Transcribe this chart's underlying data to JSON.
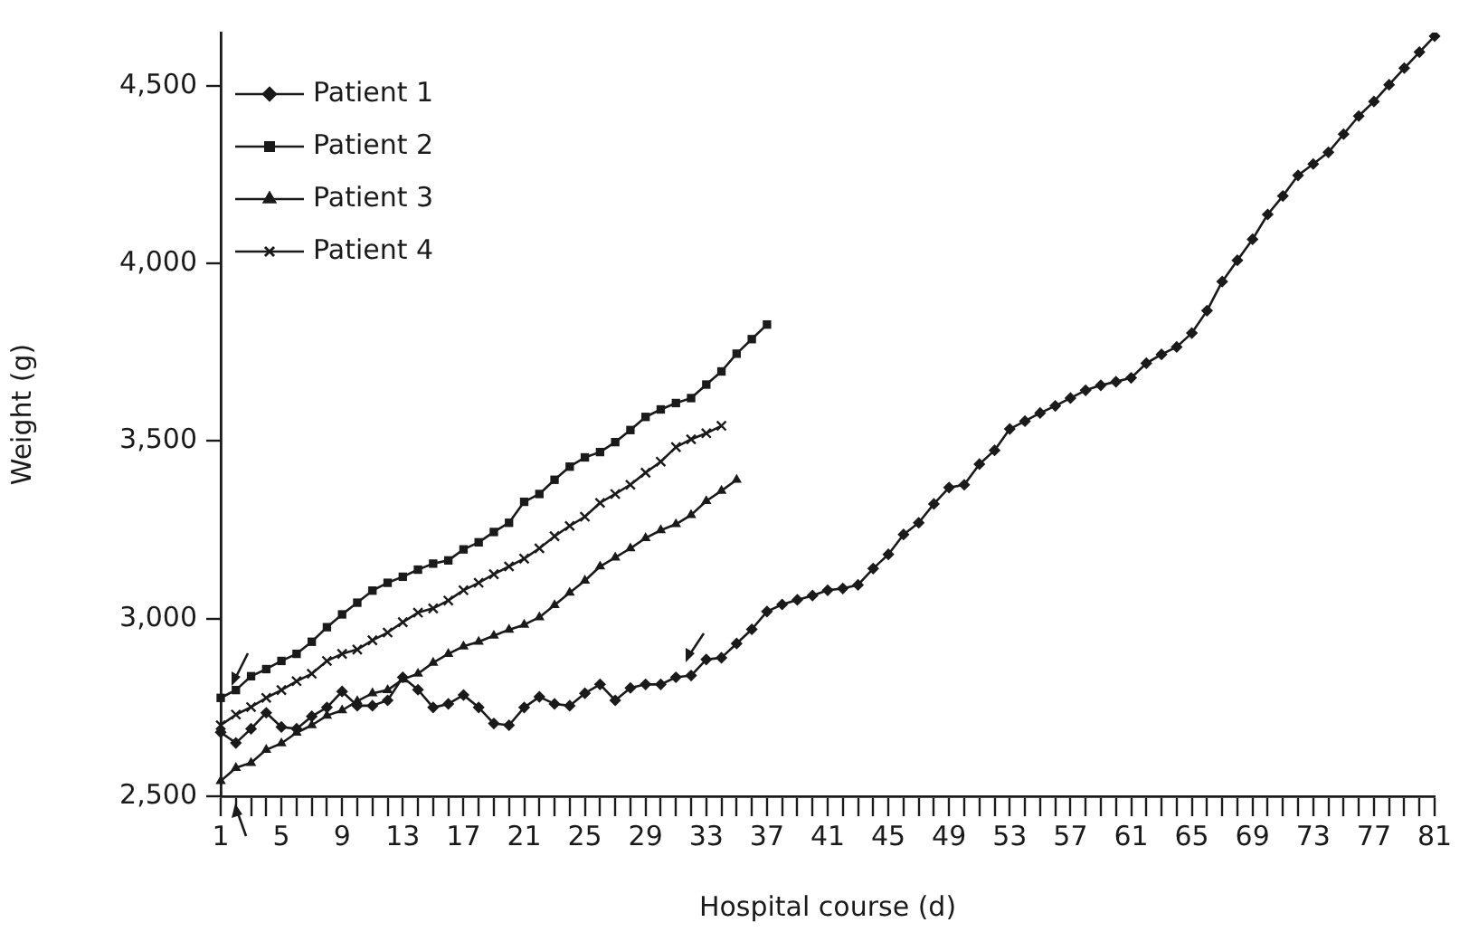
{
  "chart_data": {
    "type": "line",
    "xlabel": "Hospital course (d)",
    "ylabel": "Weight (g)",
    "categories": [
      "1",
      null,
      null,
      null,
      "5",
      null,
      null,
      null,
      "9",
      null,
      null,
      null,
      "13",
      null,
      null,
      null,
      "17",
      null,
      null,
      null,
      "21",
      null,
      null,
      null,
      "25",
      null,
      null,
      null,
      "29",
      null,
      null,
      null,
      "33",
      null,
      null,
      null,
      "37",
      null,
      null,
      null,
      "41",
      null,
      null,
      null,
      "45",
      null,
      null,
      null,
      "49",
      null,
      null,
      null,
      "53",
      null,
      null,
      null,
      "57",
      null,
      null,
      null,
      "61",
      null,
      null,
      null,
      "65",
      null,
      null,
      null,
      "69",
      null,
      null,
      null,
      "73",
      null,
      null,
      null,
      "77",
      null,
      null,
      null,
      "81"
    ],
    "ylim": [
      2500,
      4650
    ],
    "yticks": [
      {
        "value": 2500,
        "label": "2,500"
      },
      {
        "value": 3000,
        "label": "3,000"
      },
      {
        "value": 3500,
        "label": "3,500"
      },
      {
        "value": 4000,
        "label": "4,000"
      },
      {
        "value": 4500,
        "label": "4,500"
      }
    ],
    "grid": false,
    "legend": "top left",
    "line_style": "solid",
    "series": [
      {
        "name": "Patient 1",
        "color": "#1a1a1a",
        "marker": "diamond",
        "values": [
          2680,
          2650,
          2690,
          2735,
          2695,
          2690,
          2725,
          2750,
          2795,
          2755,
          2755,
          2770,
          2835,
          2800,
          2750,
          2760,
          2785,
          2750,
          2705,
          2700,
          2750,
          2780,
          2760,
          2755,
          2790,
          2815,
          2770,
          2805,
          2815,
          2815,
          2835,
          2840,
          2885,
          2890,
          2930,
          2970,
          3020,
          3040,
          3053,
          3065,
          3080,
          3085,
          3095,
          3141,
          3181,
          3237,
          3270,
          3323,
          3369,
          3377,
          3435,
          3474,
          3534,
          3556,
          3579,
          3599,
          3621,
          3643,
          3657,
          3667,
          3678,
          3719,
          3744,
          3765,
          3804,
          3867,
          3949,
          4009,
          4068,
          4138,
          4190,
          4248,
          4280,
          4313,
          4364,
          4415,
          4456,
          4503,
          4550,
          4595,
          4640
        ]
      },
      {
        "name": "Patient 2",
        "color": "#1a1a1a",
        "marker": "square",
        "values": [
          2777,
          2799,
          2838,
          2858,
          2881,
          2901,
          2935,
          2976,
          3012,
          3045,
          3079,
          3101,
          3118,
          3138,
          3155,
          3164,
          3195,
          3215,
          3244,
          3270,
          3329,
          3351,
          3391,
          3428,
          3454,
          3469,
          3497,
          3531,
          3568,
          3589,
          3607,
          3621,
          3659,
          3696,
          3746,
          3787,
          3828,
          null,
          null,
          null,
          null,
          null,
          null,
          null,
          null,
          null,
          null,
          null,
          null,
          null,
          null,
          null,
          null,
          null,
          null,
          null,
          null,
          null,
          null,
          null,
          null,
          null,
          null,
          null,
          null,
          null,
          null,
          null,
          null,
          null,
          null,
          null,
          null,
          null,
          null,
          null,
          null,
          null,
          null,
          null,
          null
        ]
      },
      {
        "name": "Patient 3",
        "color": "#1a1a1a",
        "marker": "triangle",
        "values": [
          2543,
          2580,
          2594,
          2631,
          2649,
          2679,
          2700,
          2727,
          2742,
          2768,
          2790,
          2799,
          2829,
          2845,
          2876,
          2901,
          2922,
          2935,
          2952,
          2969,
          2983,
          3004,
          3038,
          3073,
          3107,
          3147,
          3172,
          3198,
          3227,
          3249,
          3266,
          3292,
          3331,
          3360,
          3391,
          null,
          null,
          null,
          null,
          null,
          null,
          null,
          null,
          null,
          null,
          null,
          null,
          null,
          null,
          null,
          null,
          null,
          null,
          null,
          null,
          null,
          null,
          null,
          null,
          null,
          null,
          null,
          null,
          null,
          null,
          null,
          null,
          null,
          null,
          null,
          null,
          null,
          null,
          null,
          null,
          null,
          null,
          null,
          null,
          null,
          null
        ]
      },
      {
        "name": "Patient 4",
        "color": "#1a1a1a",
        "marker": "cross",
        "values": [
          2700,
          2730,
          2751,
          2777,
          2799,
          2824,
          2845,
          2881,
          2901,
          2913,
          2939,
          2961,
          2990,
          3017,
          3029,
          3051,
          3080,
          3101,
          3125,
          3147,
          3169,
          3198,
          3232,
          3261,
          3287,
          3326,
          3351,
          3377,
          3411,
          3442,
          3483,
          3505,
          3522,
          3543,
          null,
          null,
          null,
          null,
          null,
          null,
          null,
          null,
          null,
          null,
          null,
          null,
          null,
          null,
          null,
          null,
          null,
          null,
          null,
          null,
          null,
          null,
          null,
          null,
          null,
          null,
          null,
          null,
          null,
          null,
          null,
          null,
          null,
          null,
          null,
          null,
          null,
          null,
          null,
          null,
          null,
          null,
          null,
          null,
          null,
          null,
          null
        ]
      }
    ]
  }
}
